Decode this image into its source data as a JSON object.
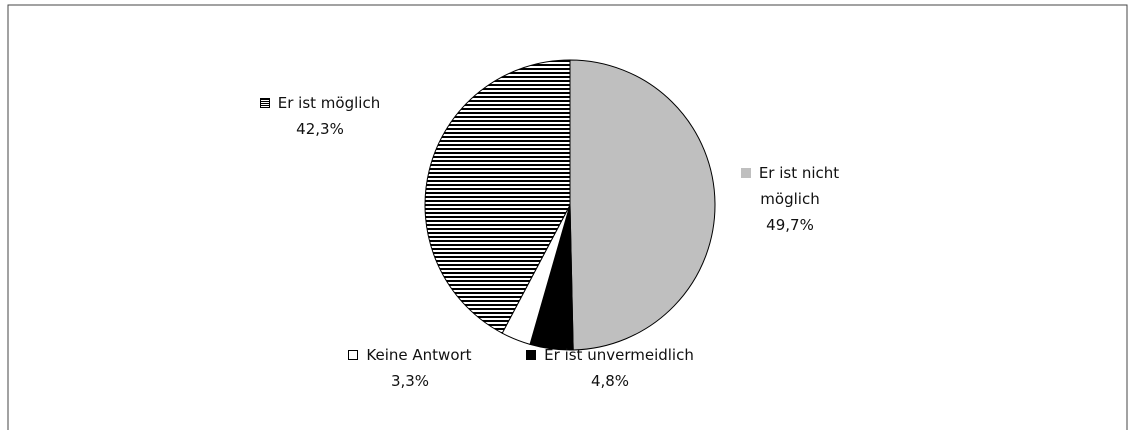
{
  "chart_data": {
    "type": "pie",
    "categories": [
      "Er ist nicht möglich",
      "Er ist unvermeidlich",
      "Keine Antwort",
      "Er ist möglich"
    ],
    "values": [
      49.7,
      4.8,
      3.3,
      42.3
    ],
    "value_labels": [
      "49,7%",
      "4,8%",
      "3,3%",
      "42,3%"
    ],
    "colors": [
      "#bfbfbf",
      "#000000",
      "#ffffff",
      "#ffffff"
    ],
    "hatch": [
      null,
      null,
      null,
      "horizontal"
    ]
  }
}
